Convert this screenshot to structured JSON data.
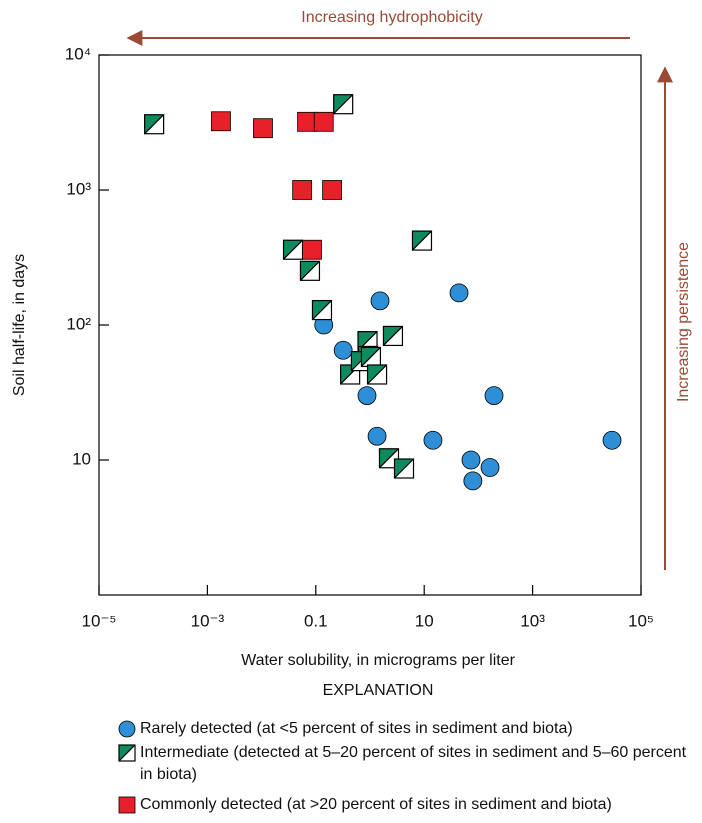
{
  "chart_data": {
    "type": "scatter",
    "xlabel": "Water solubility, in micrograms per liter",
    "ylabel": "Soil half-life, in days",
    "annotations": [
      "Increasing hydrophobicity",
      "Increasing persistence"
    ],
    "legend_title": "EXPLANATION",
    "xscale": "log",
    "yscale": "log",
    "xlim": [
      1e-05,
      100000
    ],
    "ylim": [
      1,
      10000
    ],
    "xticks": [
      {
        "value": 1e-05,
        "label": "10⁻⁵"
      },
      {
        "value": 0.001,
        "label": "10⁻³"
      },
      0.1,
      10,
      {
        "value": 1000,
        "label": "10³"
      },
      {
        "value": 100000,
        "label": "10⁵"
      }
    ],
    "yticks": [
      10,
      {
        "value": 100,
        "label": "10²"
      },
      {
        "value": 1000,
        "label": "10³"
      },
      {
        "value": 10000,
        "label": "10⁴"
      }
    ],
    "series": [
      {
        "name": "Rarely detected (at <5 percent of sites in sediment and biota)",
        "color": "#2e8fd6",
        "marker": "circle",
        "x": [
          1.53,
          43.9,
          0.14,
          0.32,
          0.88,
          1.35,
          14.5,
          194,
          73,
          79,
          164,
          29200
        ],
        "values": [
          151,
          173,
          100,
          65,
          30,
          15,
          14,
          30,
          10,
          7,
          8.8,
          14
        ]
      },
      {
        "name": "Intermediate (detected at 5–20 percent of sites in sediment and 5–60 percent in biota)",
        "color": "#0e8a5c",
        "marker": "half-square",
        "x": [
          0.000104,
          0.32,
          9.1,
          0.038,
          0.078,
          0.13,
          0.9,
          2.65,
          0.92,
          0.43,
          0.68,
          1.04,
          1.35,
          2.24,
          4.24
        ],
        "values": [
          3070,
          4320,
          422,
          361,
          252,
          129,
          76,
          83,
          59,
          43,
          54,
          58,
          43,
          10.3,
          8.65
        ]
      },
      {
        "name": "Commonly detected (at >20 percent of sites in sediment and biota)",
        "color": "#e8202a",
        "marker": "square",
        "x": [
          0.00178,
          0.0106,
          0.069,
          0.14,
          0.056,
          0.2,
          0.085
        ],
        "values": [
          3230,
          2870,
          3200,
          3200,
          1000,
          1000,
          361
        ]
      }
    ]
  }
}
